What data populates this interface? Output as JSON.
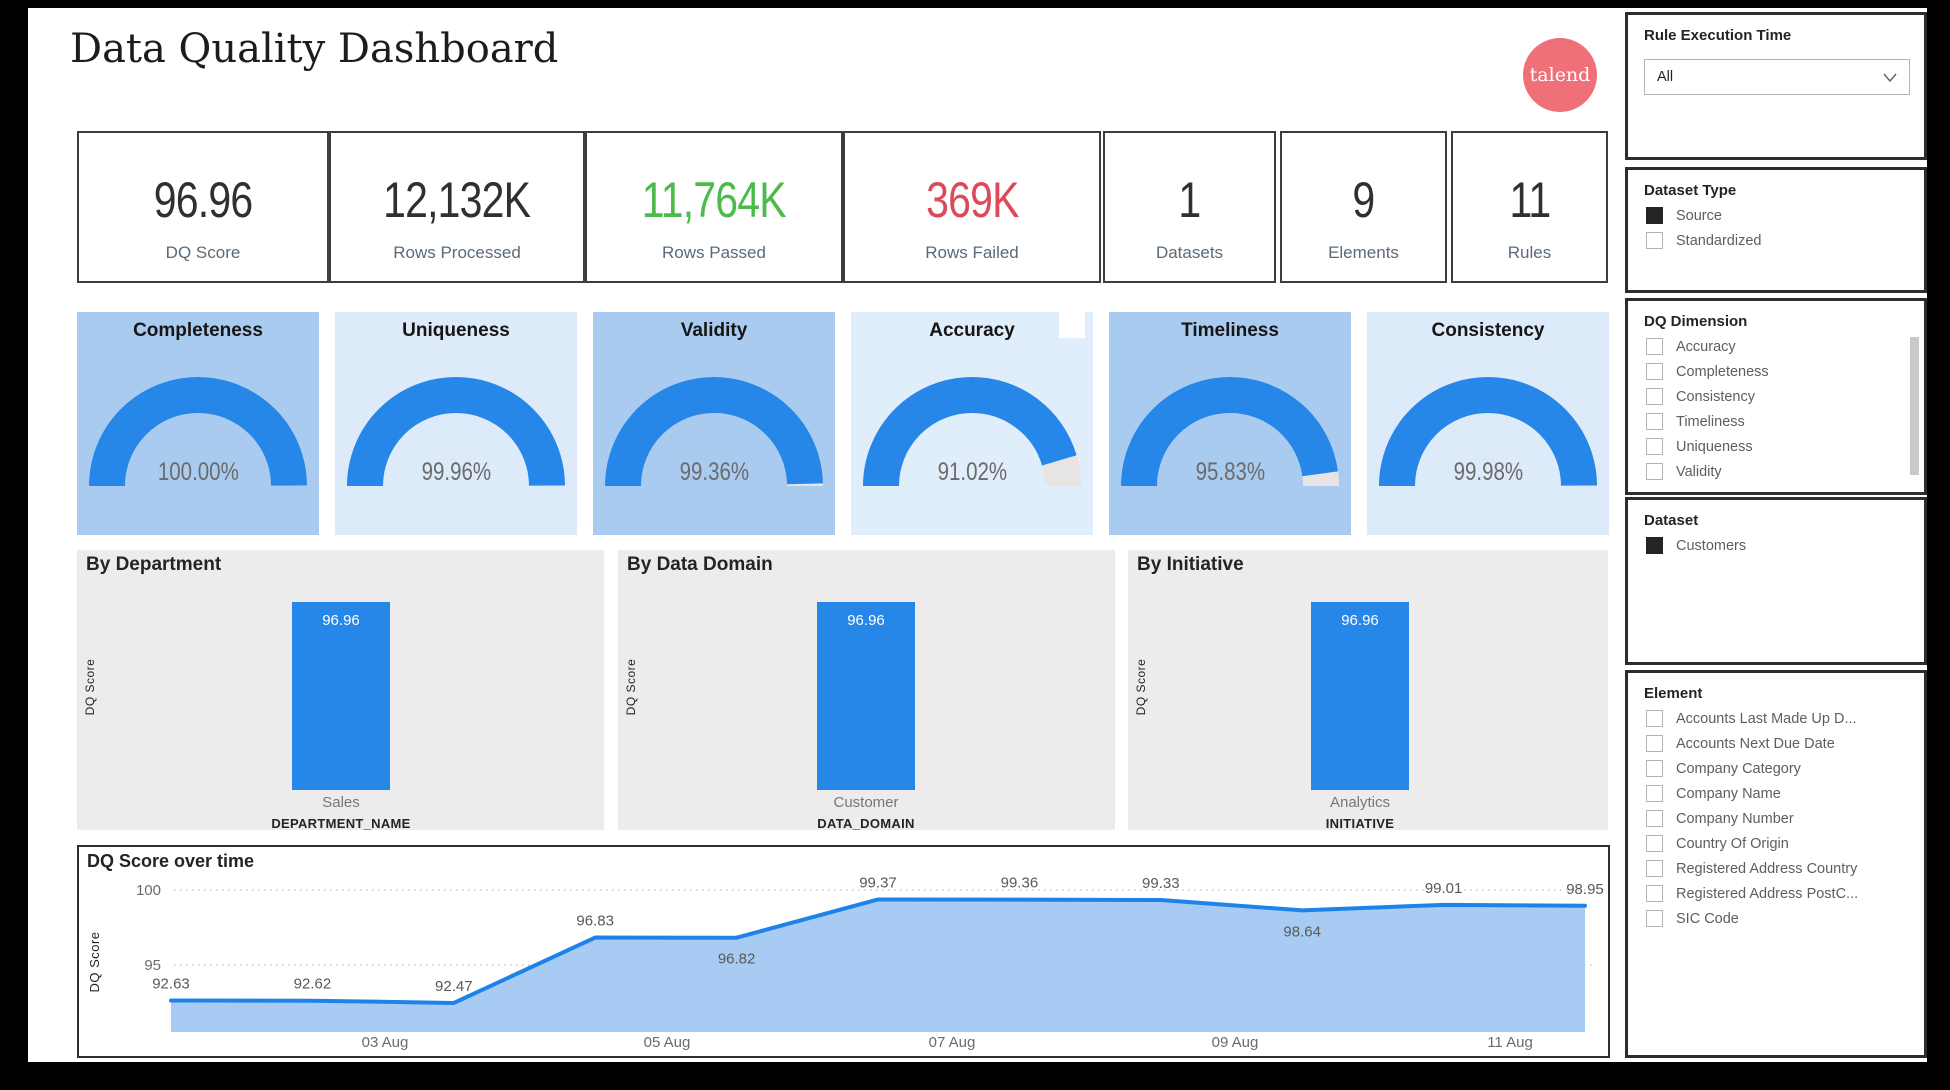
{
  "header": {
    "title": "Data Quality Dashboard",
    "logo_text": "talend"
  },
  "kpis": {
    "items": [
      {
        "value": "96.96",
        "label": "DQ Score",
        "color": "#303030"
      },
      {
        "value": "12,132K",
        "label": "Rows Processed",
        "color": "#303030"
      },
      {
        "value": "11,764K",
        "label": "Rows Passed",
        "color": "#4CBB4C"
      },
      {
        "value": "369K",
        "label": "Rows Failed",
        "color": "#DC4A59"
      },
      {
        "value": "1",
        "label": "Datasets",
        "color": "#303030"
      },
      {
        "value": "9",
        "label": "Elements",
        "color": "#303030"
      },
      {
        "value": "11",
        "label": "Rules",
        "color": "#303030"
      }
    ]
  },
  "gauges": {
    "items": [
      {
        "label": "Completeness",
        "value_pct": 100.0,
        "display": "100.00%",
        "bg": "#A9CBEF"
      },
      {
        "label": "Uniqueness",
        "value_pct": 99.96,
        "display": "99.96%",
        "bg": "#DCEAF9"
      },
      {
        "label": "Validity",
        "value_pct": 99.36,
        "display": "99.36%",
        "bg": "#A9CBEF"
      },
      {
        "label": "Accuracy",
        "value_pct": 91.02,
        "display": "91.02%",
        "bg": "#E0EDFA"
      },
      {
        "label": "Timeliness",
        "value_pct": 95.83,
        "display": "95.83%",
        "bg": "#A9CBEF"
      },
      {
        "label": "Consistency",
        "value_pct": 99.98,
        "display": "99.98%",
        "bg": "#DCEAF9"
      }
    ]
  },
  "chart_data": [
    {
      "type": "bar",
      "title": "By Department",
      "categories": [
        "Sales"
      ],
      "values": [
        96.96
      ],
      "value_labels": [
        "96.96"
      ],
      "xlabel": "DEPARTMENT_NAME",
      "ylabel": "DQ Score",
      "ylim": [
        0,
        100
      ]
    },
    {
      "type": "bar",
      "title": "By Data Domain",
      "categories": [
        "Customer"
      ],
      "values": [
        96.96
      ],
      "value_labels": [
        "96.96"
      ],
      "xlabel": "DATA_DOMAIN",
      "ylabel": "DQ Score",
      "ylim": [
        0,
        100
      ]
    },
    {
      "type": "bar",
      "title": "By Initiative",
      "categories": [
        "Analytics"
      ],
      "values": [
        96.96
      ],
      "value_labels": [
        "96.96"
      ],
      "xlabel": "INITIATIVE",
      "ylabel": "DQ Score",
      "ylim": [
        0,
        100
      ]
    },
    {
      "type": "area",
      "title": "DQ Score over time",
      "ylabel": "DQ Score",
      "values": [
        92.63,
        92.62,
        92.47,
        96.83,
        96.82,
        99.37,
        99.36,
        99.33,
        98.64,
        99.01,
        98.95
      ],
      "label_below_indices": [
        4,
        8
      ],
      "x_tick_labels": [
        "03 Aug",
        "05 Aug",
        "07 Aug",
        "09 Aug",
        "11 Aug"
      ],
      "y_ticks": [
        100,
        95
      ],
      "ylim": [
        90.5,
        100.5
      ],
      "grid": "dotted-horizontal",
      "line_color": "#1E83E8",
      "area_color": "#A7CBF3"
    }
  ],
  "sidebar": {
    "rule_execution_time": {
      "title": "Rule Execution Time",
      "dropdown_value": "All"
    },
    "dataset_type": {
      "title": "Dataset Type",
      "items": [
        {
          "label": "Source",
          "checked": true
        },
        {
          "label": "Standardized",
          "checked": false
        }
      ]
    },
    "dq_dimension": {
      "title": "DQ Dimension",
      "items": [
        {
          "label": "Accuracy",
          "checked": false
        },
        {
          "label": "Completeness",
          "checked": false
        },
        {
          "label": "Consistency",
          "checked": false
        },
        {
          "label": "Timeliness",
          "checked": false
        },
        {
          "label": "Uniqueness",
          "checked": false
        },
        {
          "label": "Validity",
          "checked": false
        }
      ]
    },
    "dataset": {
      "title": "Dataset",
      "items": [
        {
          "label": "Customers",
          "checked": true
        }
      ]
    },
    "element": {
      "title": "Element",
      "items": [
        {
          "label": "Accounts Last Made Up D...",
          "checked": false
        },
        {
          "label": "Accounts Next Due Date",
          "checked": false
        },
        {
          "label": "Company Category",
          "checked": false
        },
        {
          "label": "Company Name",
          "checked": false
        },
        {
          "label": "Company Number",
          "checked": false
        },
        {
          "label": "Country Of Origin",
          "checked": false
        },
        {
          "label": "Registered Address Country",
          "checked": false
        },
        {
          "label": "Registered Address PostC...",
          "checked": false
        },
        {
          "label": "SIC Code",
          "checked": false
        }
      ]
    }
  }
}
